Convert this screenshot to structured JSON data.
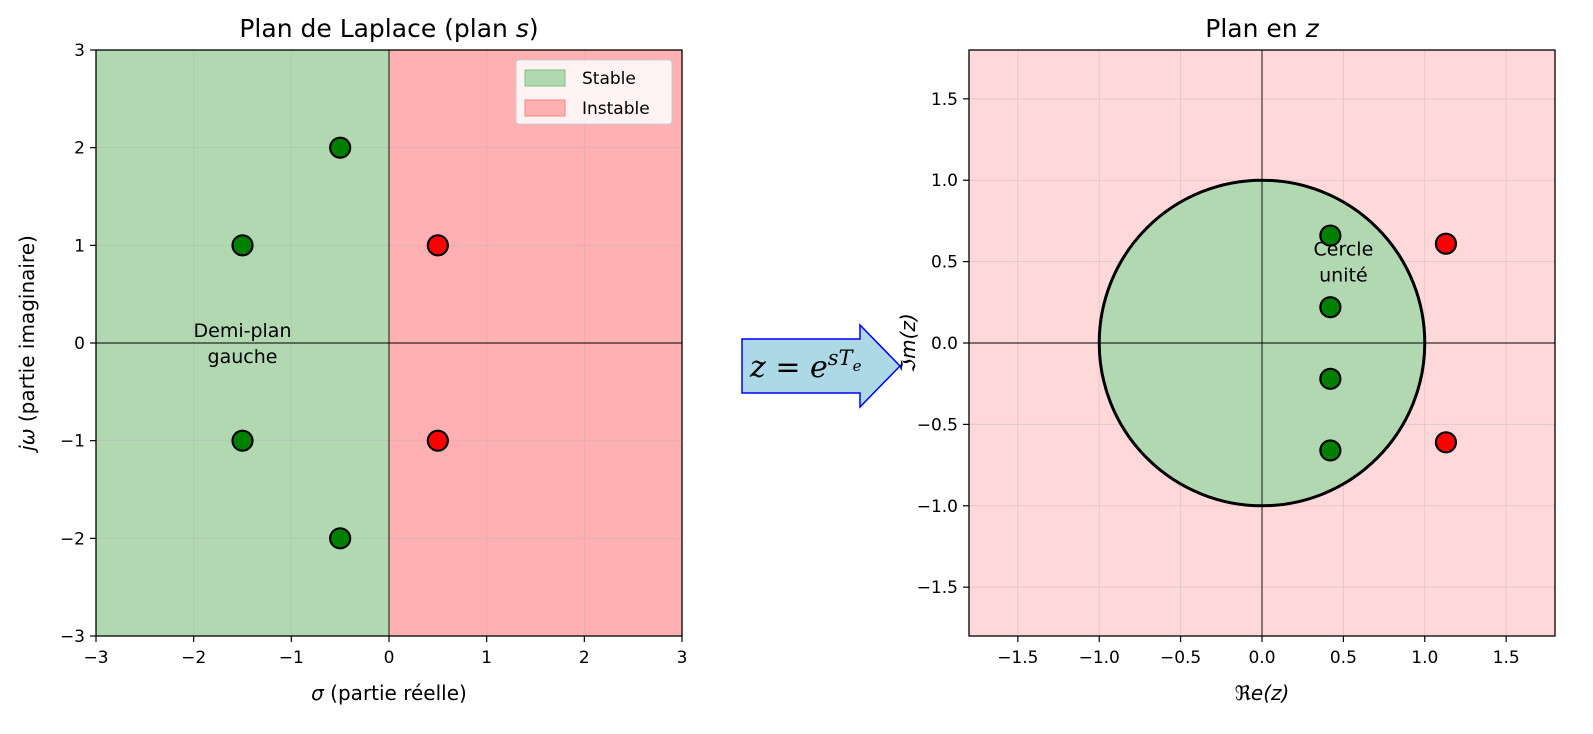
{
  "chart_data": [
    {
      "type": "scatter",
      "title": "Plan de Laplace (plan s)",
      "title_parts": [
        "Plan de Laplace (plan ",
        "s",
        ")"
      ],
      "xlabel": "σ (partie réelle)",
      "ylabel": "jω (partie imaginaire)",
      "xlim": [
        -3,
        3
      ],
      "ylim": [
        -3,
        3
      ],
      "xticks": [
        -3,
        -2,
        -1,
        0,
        1,
        2,
        3
      ],
      "yticks": [
        -3,
        -2,
        -1,
        0,
        1,
        2,
        3
      ],
      "xtick_labels": [
        "−3",
        "−2",
        "−1",
        "0",
        "1",
        "2",
        "3"
      ],
      "ytick_labels": [
        "−3",
        "−2",
        "−1",
        "0",
        "1",
        "2",
        "3"
      ],
      "grid": true,
      "regions": [
        {
          "name": "Stable",
          "x_range": [
            -3,
            0
          ],
          "color": "#b2d8b2"
        },
        {
          "name": "Instable",
          "x_range": [
            0,
            3
          ],
          "color": "#ffb0b2"
        }
      ],
      "legend": {
        "placement": "top-right",
        "entries": [
          "Stable",
          "Instable"
        ]
      },
      "annotation": {
        "lines": [
          "Demi-plan",
          "gauche"
        ],
        "x": -1.5,
        "y": 0
      },
      "series": [
        {
          "name": "Stable",
          "color": "#008000",
          "points": [
            [
              -0.5,
              2
            ],
            [
              -1.5,
              1
            ],
            [
              -1.5,
              -1
            ],
            [
              -0.5,
              -2
            ]
          ]
        },
        {
          "name": "Instable",
          "color": "#ff0000",
          "points": [
            [
              0.5,
              1
            ],
            [
              0.5,
              -1
            ]
          ]
        }
      ]
    },
    {
      "type": "scatter",
      "title": "Plan en z",
      "title_parts": [
        "Plan en ",
        "z",
        ""
      ],
      "xlabel": "ℜe(z)",
      "ylabel": "ℑm(z)",
      "xlim": [
        -1.8,
        1.8
      ],
      "ylim": [
        -1.8,
        1.8
      ],
      "xticks": [
        -1.5,
        -1.0,
        -0.5,
        0.0,
        0.5,
        1.0,
        1.5
      ],
      "yticks": [
        -1.5,
        -1.0,
        -0.5,
        0.0,
        0.5,
        1.0,
        1.5
      ],
      "xtick_labels": [
        "−1.5",
        "−1.0",
        "−0.5",
        "0.0",
        "0.5",
        "1.0",
        "1.5"
      ],
      "ytick_labels": [
        "−1.5",
        "−1.0",
        "−0.5",
        "0.0",
        "0.5",
        "1.0",
        "1.5"
      ],
      "grid": true,
      "background_color": "#ffd8da",
      "unit_circle": {
        "radius": 1,
        "fill": "#b2d8b2",
        "stroke": "#000000"
      },
      "annotation": {
        "lines": [
          "Cercle",
          "unité"
        ],
        "x": 0.5,
        "y": 0.5
      },
      "series": [
        {
          "name": "Stable",
          "color": "#008000",
          "points": [
            [
              0.42,
              0.66
            ],
            [
              0.42,
              0.22
            ],
            [
              0.42,
              -0.22
            ],
            [
              0.42,
              -0.66
            ]
          ]
        },
        {
          "name": "Instable",
          "color": "#ff0000",
          "points": [
            [
              1.13,
              0.61
            ],
            [
              1.13,
              -0.61
            ]
          ]
        }
      ]
    }
  ],
  "arrow": {
    "label": "z = e^(sTe)",
    "label_parts": {
      "base": "z = e",
      "exp": "sT",
      "sub": "e"
    },
    "fill": "#add8e6",
    "stroke": "#0000ff"
  }
}
